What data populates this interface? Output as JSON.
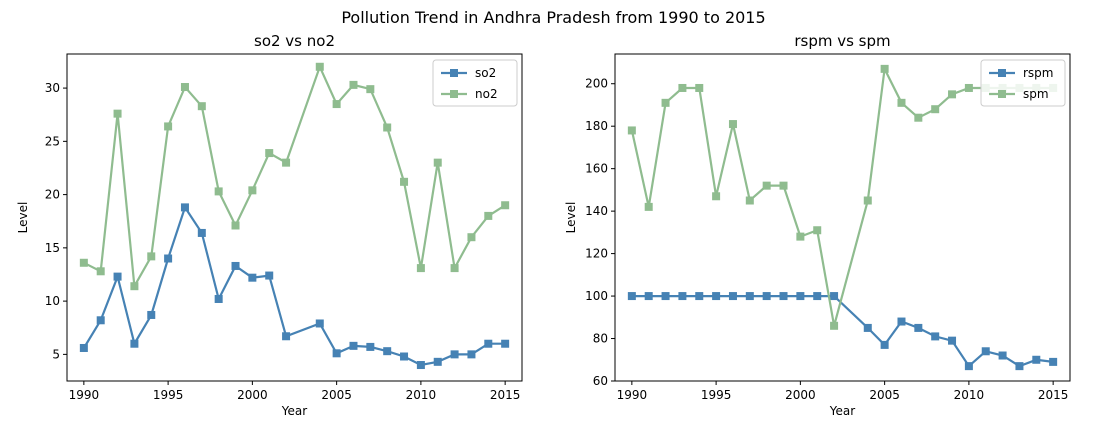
{
  "figure": {
    "suptitle": "Pollution Trend in Andhra Pradesh from 1990 to 2015"
  },
  "chart_data": [
    {
      "type": "line",
      "title": "so2 vs no2",
      "xlabel": "Year",
      "ylabel": "Level",
      "xlim": [
        1989,
        2016
      ],
      "ylim": [
        2.5,
        33.2
      ],
      "xticks": [
        1990,
        1995,
        2000,
        2005,
        2010,
        2015
      ],
      "yticks": [
        5,
        10,
        15,
        20,
        25,
        30
      ],
      "grid": false,
      "legend": "top-right",
      "series": [
        {
          "name": "so2",
          "color": "#4682b4",
          "points": [
            [
              1990,
              5.6
            ],
            [
              1991,
              8.2
            ],
            [
              1992,
              12.3
            ],
            [
              1993,
              6.0
            ],
            [
              1994,
              8.7
            ],
            [
              1995,
              14.0
            ],
            [
              1996,
              18.8
            ],
            [
              1997,
              16.4
            ],
            [
              1998,
              10.2
            ],
            [
              1999,
              13.3
            ],
            [
              2000,
              12.2
            ],
            [
              2001,
              12.4
            ],
            [
              2002,
              6.7
            ],
            [
              2004,
              7.9
            ],
            [
              2005,
              5.1
            ],
            [
              2006,
              5.8
            ],
            [
              2007,
              5.7
            ],
            [
              2008,
              5.3
            ],
            [
              2009,
              4.8
            ],
            [
              2010,
              4.0
            ],
            [
              2011,
              4.3
            ],
            [
              2012,
              5.0
            ],
            [
              2013,
              5.0
            ],
            [
              2014,
              6.0
            ],
            [
              2015,
              6.0
            ]
          ]
        },
        {
          "name": "no2",
          "color": "#8fbc8f",
          "points": [
            [
              1990,
              13.6
            ],
            [
              1991,
              12.8
            ],
            [
              1992,
              27.6
            ],
            [
              1993,
              11.4
            ],
            [
              1994,
              14.2
            ],
            [
              1995,
              26.4
            ],
            [
              1996,
              30.1
            ],
            [
              1997,
              28.3
            ],
            [
              1998,
              20.3
            ],
            [
              1999,
              17.1
            ],
            [
              2000,
              20.4
            ],
            [
              2001,
              23.9
            ],
            [
              2002,
              23.0
            ],
            [
              2004,
              32.0
            ],
            [
              2005,
              28.5
            ],
            [
              2006,
              30.3
            ],
            [
              2007,
              29.9
            ],
            [
              2008,
              26.3
            ],
            [
              2009,
              21.2
            ],
            [
              2010,
              13.1
            ],
            [
              2011,
              23.0
            ],
            [
              2012,
              13.1
            ],
            [
              2013,
              16.0
            ],
            [
              2014,
              18.0
            ],
            [
              2015,
              19.0
            ]
          ]
        }
      ]
    },
    {
      "type": "line",
      "title": "rspm vs spm",
      "xlabel": "Year",
      "ylabel": "Level",
      "xlim": [
        1989,
        2016
      ],
      "ylim": [
        60,
        214
      ],
      "xticks": [
        1990,
        1995,
        2000,
        2005,
        2010,
        2015
      ],
      "yticks": [
        60,
        80,
        100,
        120,
        140,
        160,
        180,
        200
      ],
      "grid": false,
      "legend": "top-right",
      "series": [
        {
          "name": "rspm",
          "color": "#4682b4",
          "points": [
            [
              1990,
              100
            ],
            [
              1991,
              100
            ],
            [
              1992,
              100
            ],
            [
              1993,
              100
            ],
            [
              1994,
              100
            ],
            [
              1995,
              100
            ],
            [
              1996,
              100
            ],
            [
              1997,
              100
            ],
            [
              1998,
              100
            ],
            [
              1999,
              100
            ],
            [
              2000,
              100
            ],
            [
              2001,
              100
            ],
            [
              2002,
              100
            ],
            [
              2004,
              85
            ],
            [
              2005,
              77
            ],
            [
              2006,
              88
            ],
            [
              2007,
              85
            ],
            [
              2008,
              81
            ],
            [
              2009,
              79
            ],
            [
              2010,
              67
            ],
            [
              2011,
              74
            ],
            [
              2012,
              72
            ],
            [
              2013,
              67
            ],
            [
              2014,
              70
            ],
            [
              2015,
              69
            ]
          ]
        },
        {
          "name": "spm",
          "color": "#8fbc8f",
          "points": [
            [
              1990,
              178
            ],
            [
              1991,
              142
            ],
            [
              1992,
              191
            ],
            [
              1993,
              198
            ],
            [
              1994,
              198
            ],
            [
              1995,
              147
            ],
            [
              1996,
              181
            ],
            [
              1997,
              145
            ],
            [
              1998,
              152
            ],
            [
              1999,
              152
            ],
            [
              2000,
              128
            ],
            [
              2001,
              131
            ],
            [
              2002,
              86
            ],
            [
              2004,
              145
            ],
            [
              2005,
              207
            ],
            [
              2006,
              191
            ],
            [
              2007,
              184
            ],
            [
              2008,
              188
            ],
            [
              2009,
              195
            ],
            [
              2010,
              198
            ],
            [
              2011,
              198
            ],
            [
              2012,
              198
            ],
            [
              2013,
              198
            ],
            [
              2014,
              198
            ],
            [
              2015,
              198
            ]
          ]
        }
      ]
    }
  ]
}
